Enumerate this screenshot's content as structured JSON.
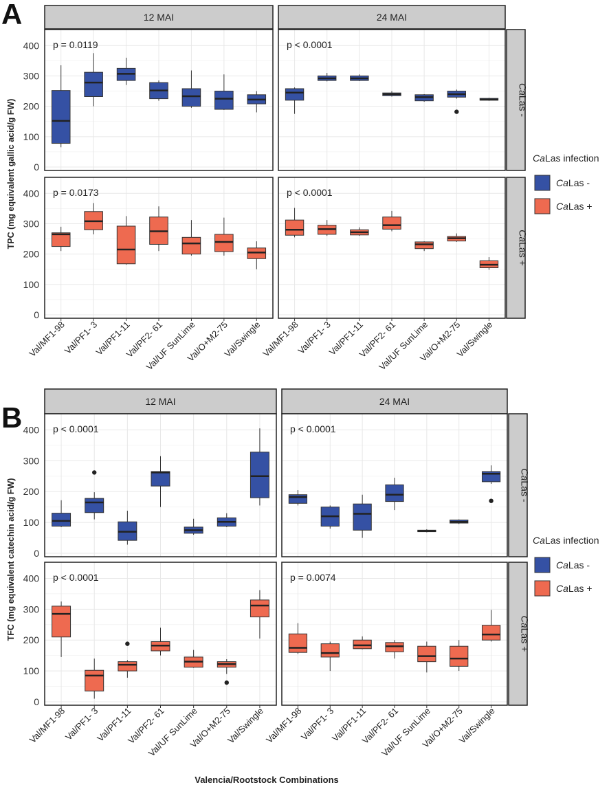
{
  "x_axis_title": "Valencia/Rootstock Combinations",
  "colors": {
    "neg": "#3551A4",
    "pos": "#EE6A50",
    "strip": "#CCCCCC",
    "grid": "#E8E8E8",
    "dark": "#222222"
  },
  "chart_data": [
    {
      "type": "boxplot",
      "label": "A",
      "ylabel": "TPC (mg equivalent gallic acid/g FW)",
      "ylim": [
        0,
        430
      ],
      "yticks": [
        0,
        100,
        200,
        300,
        400
      ],
      "columns": [
        "12 MAI",
        "24 MAI"
      ],
      "rows": [
        "CaLas -",
        "CaLas +"
      ],
      "categories": [
        "Val/MF1-98",
        "Val/PF1- 3",
        "Val/PF1-11",
        "Val/PF2- 61",
        "Val/UF SunLime",
        "Val/O+M2-75",
        "Val/Swingle"
      ],
      "legend": {
        "title": "CaLas infection",
        "entries": [
          "CaLas -",
          "CaLas +"
        ]
      },
      "panels": [
        {
          "row": 0,
          "col": 0,
          "pvalue": "p = 0.0119",
          "boxes": [
            {
              "min": 65,
              "q1": 78,
              "med": 152,
              "q3": 252,
              "max": 335,
              "out": []
            },
            {
              "min": 200,
              "q1": 232,
              "med": 278,
              "q3": 312,
              "max": 375,
              "out": []
            },
            {
              "min": 270,
              "q1": 285,
              "med": 307,
              "q3": 325,
              "max": 360,
              "out": []
            },
            {
              "min": 218,
              "q1": 225,
              "med": 252,
              "q3": 278,
              "max": 285,
              "out": []
            },
            {
              "min": 195,
              "q1": 200,
              "med": 233,
              "q3": 258,
              "max": 318,
              "out": []
            },
            {
              "min": 188,
              "q1": 190,
              "med": 225,
              "q3": 250,
              "max": 305,
              "out": []
            },
            {
              "min": 180,
              "q1": 208,
              "med": 222,
              "q3": 238,
              "max": 250,
              "out": []
            }
          ]
        },
        {
          "row": 0,
          "col": 1,
          "pvalue": "p < 0.0001",
          "boxes": [
            {
              "min": 175,
              "q1": 220,
              "med": 245,
              "q3": 258,
              "max": 262,
              "out": []
            },
            {
              "min": 282,
              "q1": 285,
              "med": 292,
              "q3": 300,
              "max": 310,
              "out": []
            },
            {
              "min": 283,
              "q1": 285,
              "med": 292,
              "q3": 300,
              "max": 305,
              "out": []
            },
            {
              "min": 232,
              "q1": 235,
              "med": 240,
              "q3": 244,
              "max": 250,
              "out": []
            },
            {
              "min": 215,
              "q1": 218,
              "med": 230,
              "q3": 238,
              "max": 240,
              "out": []
            },
            {
              "min": 225,
              "q1": 230,
              "med": 240,
              "q3": 250,
              "max": 255,
              "out": [
                182
              ]
            },
            {
              "min": 218,
              "q1": 220,
              "med": 222,
              "q3": 226,
              "max": 228,
              "out": []
            }
          ]
        },
        {
          "row": 1,
          "col": 0,
          "pvalue": "p = 0.0173",
          "boxes": [
            {
              "min": 210,
              "q1": 225,
              "med": 265,
              "q3": 270,
              "max": 290,
              "out": []
            },
            {
              "min": 265,
              "q1": 280,
              "med": 308,
              "q3": 340,
              "max": 368,
              "out": []
            },
            {
              "min": 165,
              "q1": 168,
              "med": 215,
              "q3": 292,
              "max": 325,
              "out": []
            },
            {
              "min": 210,
              "q1": 232,
              "med": 275,
              "q3": 322,
              "max": 357,
              "out": []
            },
            {
              "min": 195,
              "q1": 200,
              "med": 235,
              "q3": 255,
              "max": 312,
              "out": []
            },
            {
              "min": 195,
              "q1": 208,
              "med": 240,
              "q3": 265,
              "max": 320,
              "out": []
            },
            {
              "min": 150,
              "q1": 185,
              "med": 205,
              "q3": 220,
              "max": 242,
              "out": []
            }
          ]
        },
        {
          "row": 1,
          "col": 1,
          "pvalue": "p < 0.0001",
          "boxes": [
            {
              "min": 255,
              "q1": 262,
              "med": 280,
              "q3": 312,
              "max": 352,
              "out": []
            },
            {
              "min": 260,
              "q1": 265,
              "med": 282,
              "q3": 295,
              "max": 312,
              "out": []
            },
            {
              "min": 260,
              "q1": 263,
              "med": 272,
              "q3": 280,
              "max": 288,
              "out": []
            },
            {
              "min": 275,
              "q1": 282,
              "med": 295,
              "q3": 322,
              "max": 342,
              "out": []
            },
            {
              "min": 210,
              "q1": 218,
              "med": 232,
              "q3": 240,
              "max": 242,
              "out": []
            },
            {
              "min": 240,
              "q1": 243,
              "med": 252,
              "q3": 258,
              "max": 268,
              "out": []
            },
            {
              "min": 148,
              "q1": 155,
              "med": 165,
              "q3": 178,
              "max": 190,
              "out": []
            }
          ]
        }
      ]
    },
    {
      "type": "boxplot",
      "label": "B",
      "ylabel": "TFC (mg equivalent catechin acid/g FW)",
      "ylim": [
        0,
        430
      ],
      "yticks": [
        0,
        100,
        200,
        300,
        400
      ],
      "columns": [
        "12 MAI",
        "24 MAI"
      ],
      "rows": [
        "CaLas -",
        "CaLas +"
      ],
      "categories": [
        "Val/MF1-98",
        "Val/PF1- 3",
        "Val/PF1-11",
        "Val/PF2- 61",
        "Val/UF SunLime",
        "Val/O+M2-75",
        "Val/Swingle"
      ],
      "legend": {
        "title": "CaLas infection",
        "entries": [
          "CaLas -",
          "CaLas +"
        ]
      },
      "panels": [
        {
          "row": 0,
          "col": 0,
          "pvalue": "p < 0.0001",
          "boxes": [
            {
              "min": 85,
              "q1": 88,
              "med": 105,
              "q3": 130,
              "max": 172,
              "out": []
            },
            {
              "min": 110,
              "q1": 132,
              "med": 165,
              "q3": 178,
              "max": 198,
              "out": [
                262
              ]
            },
            {
              "min": 28,
              "q1": 42,
              "med": 70,
              "q3": 102,
              "max": 138,
              "out": []
            },
            {
              "min": 150,
              "q1": 218,
              "med": 262,
              "q3": 265,
              "max": 315,
              "out": []
            },
            {
              "min": 60,
              "q1": 65,
              "med": 75,
              "q3": 85,
              "max": 112,
              "out": []
            },
            {
              "min": 85,
              "q1": 88,
              "med": 102,
              "q3": 115,
              "max": 130,
              "out": []
            },
            {
              "min": 155,
              "q1": 180,
              "med": 250,
              "q3": 328,
              "max": 405,
              "out": []
            }
          ]
        },
        {
          "row": 0,
          "col": 1,
          "pvalue": "p < 0.0001",
          "boxes": [
            {
              "min": 155,
              "q1": 162,
              "med": 182,
              "q3": 190,
              "max": 205,
              "out": []
            },
            {
              "min": 80,
              "q1": 88,
              "med": 120,
              "q3": 150,
              "max": 155,
              "out": []
            },
            {
              "min": 50,
              "q1": 75,
              "med": 128,
              "q3": 160,
              "max": 190,
              "out": []
            },
            {
              "min": 140,
              "q1": 168,
              "med": 190,
              "q3": 222,
              "max": 245,
              "out": []
            },
            {
              "min": 68,
              "q1": 70,
              "med": 72,
              "q3": 75,
              "max": 78,
              "out": []
            },
            {
              "min": 95,
              "q1": 98,
              "med": 102,
              "q3": 108,
              "max": 110,
              "out": []
            },
            {
              "min": 225,
              "q1": 232,
              "med": 258,
              "q3": 265,
              "max": 285,
              "out": [
                170
              ]
            }
          ]
        },
        {
          "row": 1,
          "col": 0,
          "pvalue": "p < 0.0001",
          "boxes": [
            {
              "min": 145,
              "q1": 210,
              "med": 285,
              "q3": 310,
              "max": 325,
              "out": []
            },
            {
              "min": 10,
              "q1": 35,
              "med": 85,
              "q3": 102,
              "max": 140,
              "out": []
            },
            {
              "min": 78,
              "q1": 100,
              "med": 120,
              "q3": 130,
              "max": 135,
              "out": [
                188
              ]
            },
            {
              "min": 150,
              "q1": 165,
              "med": 182,
              "q3": 195,
              "max": 240,
              "out": []
            },
            {
              "min": 110,
              "q1": 112,
              "med": 130,
              "q3": 145,
              "max": 168,
              "out": []
            },
            {
              "min": 90,
              "q1": 112,
              "med": 122,
              "q3": 130,
              "max": 138,
              "out": [
                62
              ]
            },
            {
              "min": 205,
              "q1": 275,
              "med": 312,
              "q3": 330,
              "max": 362,
              "out": []
            }
          ]
        },
        {
          "row": 1,
          "col": 1,
          "pvalue": "p = 0.0074",
          "boxes": [
            {
              "min": 155,
              "q1": 160,
              "med": 175,
              "q3": 220,
              "max": 255,
              "out": []
            },
            {
              "min": 100,
              "q1": 145,
              "med": 158,
              "q3": 188,
              "max": 195,
              "out": []
            },
            {
              "min": 170,
              "q1": 172,
              "med": 183,
              "q3": 200,
              "max": 212,
              "out": []
            },
            {
              "min": 140,
              "q1": 162,
              "med": 180,
              "q3": 192,
              "max": 200,
              "out": []
            },
            {
              "min": 95,
              "q1": 130,
              "med": 148,
              "q3": 180,
              "max": 195,
              "out": []
            },
            {
              "min": 100,
              "q1": 115,
              "med": 140,
              "q3": 180,
              "max": 200,
              "out": []
            },
            {
              "min": 195,
              "q1": 200,
              "med": 218,
              "q3": 248,
              "max": 298,
              "out": []
            }
          ]
        }
      ]
    }
  ]
}
